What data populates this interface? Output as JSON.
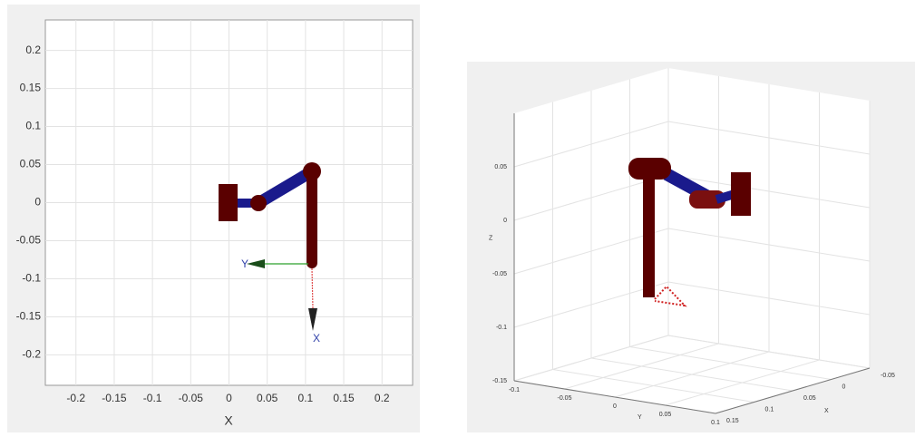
{
  "chart_data": [
    {
      "type": "plot",
      "xlabel": "X",
      "xlim": [
        -0.24,
        0.24
      ],
      "ylim": [
        -0.24,
        0.24
      ],
      "xticks": [
        -0.2,
        -0.15,
        -0.1,
        -0.05,
        0,
        0.05,
        0.1,
        0.15,
        0.2
      ],
      "yticks": [
        -0.2,
        -0.15,
        -0.1,
        -0.05,
        0,
        0.05,
        0.1,
        0.15,
        0.2
      ],
      "grid": true,
      "annotations": [
        "Y",
        "X"
      ]
    },
    {
      "type": "plot3",
      "xlabel": "X",
      "ylabel": "Y",
      "zlabel": "Z",
      "xlim": [
        -0.05,
        0.15
      ],
      "ylim": [
        -0.1,
        0.1
      ],
      "zlim": [
        -0.15,
        0.1
      ],
      "xticks": [
        -0.05,
        0,
        0.05,
        0.1,
        0.15
      ],
      "yticks": [
        -0.1,
        -0.05,
        0,
        0.05,
        0.1
      ],
      "zticks": [
        -0.15,
        -0.1,
        -0.05,
        0,
        0.05
      ],
      "grid": true
    }
  ]
}
